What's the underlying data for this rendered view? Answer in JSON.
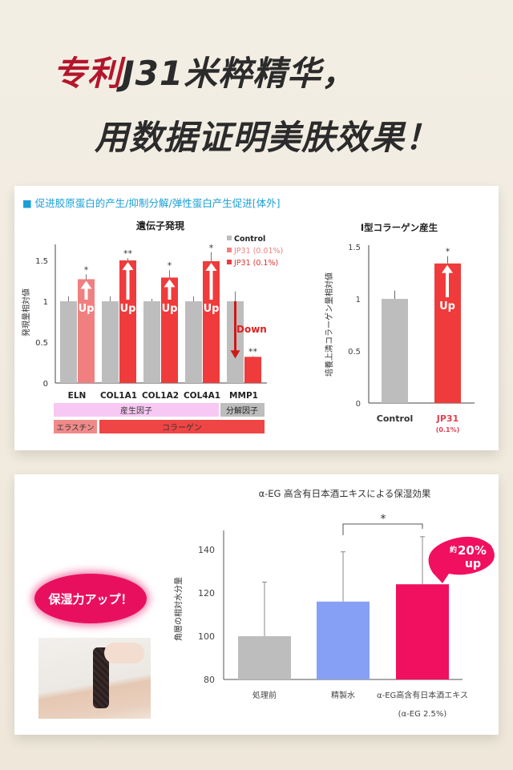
{
  "header": {
    "title_red": "专利",
    "title_rest": "J31米粹精华，",
    "subtitle": "用数据证明美肤效果！"
  },
  "section1": {
    "heading": "■ 促进胶原蛋白的产生/抑制分解/弹性蛋白产生促进[体外]"
  },
  "section2": {
    "badge": "保湿力アップ！",
    "callout_prefix": "約",
    "callout_value": "20%",
    "callout_suffix": "up"
  },
  "colors": {
    "control": "#bdbdbd",
    "jp31_low": "#f08080",
    "jp31_high": "#ef3b3b",
    "purified_water": "#86a0f5",
    "aeg": "#f0105f",
    "accent_blue": "#1a9fd8"
  },
  "chart_data": [
    {
      "type": "bar",
      "title": "遺伝子発現",
      "ylabel": "発現量相対値",
      "xlabel": "",
      "ylim": [
        0,
        1.6
      ],
      "yticks": [
        "0",
        "0.5",
        "1",
        "1.5"
      ],
      "categories": [
        "ELN",
        "COL1A1",
        "COL1A2",
        "COL4A1",
        "MMP1"
      ],
      "legend": [
        "Control",
        "JP31 (0.01%)",
        "JP31 (0.1%)"
      ],
      "legend_position": "top-right",
      "series": [
        {
          "name": "Control",
          "values": [
            1.0,
            1.0,
            1.0,
            1.0,
            1.0
          ],
          "error_top": [
            1.06,
            1.06,
            1.03,
            1.06,
            1.12
          ]
        },
        {
          "name": "JP31",
          "values": [
            1.27,
            1.5,
            1.29,
            1.49,
            0.32
          ],
          "error_top": [
            1.33,
            1.53,
            1.38,
            1.6,
            0.33
          ],
          "concentration": [
            "JP31 (0.01%)",
            "JP31 (0.1%)",
            "JP31 (0.1%)",
            "JP31 (0.1%)",
            "JP31 (0.1%)"
          ],
          "significance": [
            "*",
            "**",
            "*",
            "*",
            "**"
          ]
        }
      ],
      "annotations": {
        "up": "Up",
        "down": "Down"
      },
      "groups": [
        {
          "label": "産生因子"
        },
        {
          "label": "分解因子"
        }
      ],
      "subgroups": [
        {
          "label": "エラスチン"
        },
        {
          "label": "コラーゲン"
        }
      ]
    },
    {
      "type": "bar",
      "title": "I型コラーゲン産生",
      "ylabel": "培養上清コラーゲン量相対値",
      "ylim": [
        0,
        1.5
      ],
      "yticks": [
        "0",
        "0.5",
        "1",
        "1.5"
      ],
      "categories": [
        "Control",
        "JP31"
      ],
      "category_notes": [
        "",
        "(0.1%)"
      ],
      "values": [
        1.0,
        1.34
      ],
      "error_top": [
        1.08,
        1.41
      ],
      "significance": [
        "",
        "*"
      ],
      "annotation": "Up"
    },
    {
      "type": "bar",
      "title": "α-EG 高含有日本酒エキスによる保湿効果",
      "ylabel": "角層の相対水分量",
      "ylim": [
        80,
        150
      ],
      "yticks": [
        "80",
        "100",
        "120",
        "140"
      ],
      "categories": [
        "処理前",
        "精製水",
        "α-EG高含有日本酒エキス"
      ],
      "category_notes": [
        "",
        "",
        "(α-EG 2.5%)"
      ],
      "values": [
        100,
        116,
        124
      ],
      "error_top": [
        125,
        139,
        146
      ],
      "significance_bracket": {
        "between": [
          "精製水",
          "α-EG高含有日本酒エキス"
        ],
        "mark": "*"
      }
    }
  ]
}
